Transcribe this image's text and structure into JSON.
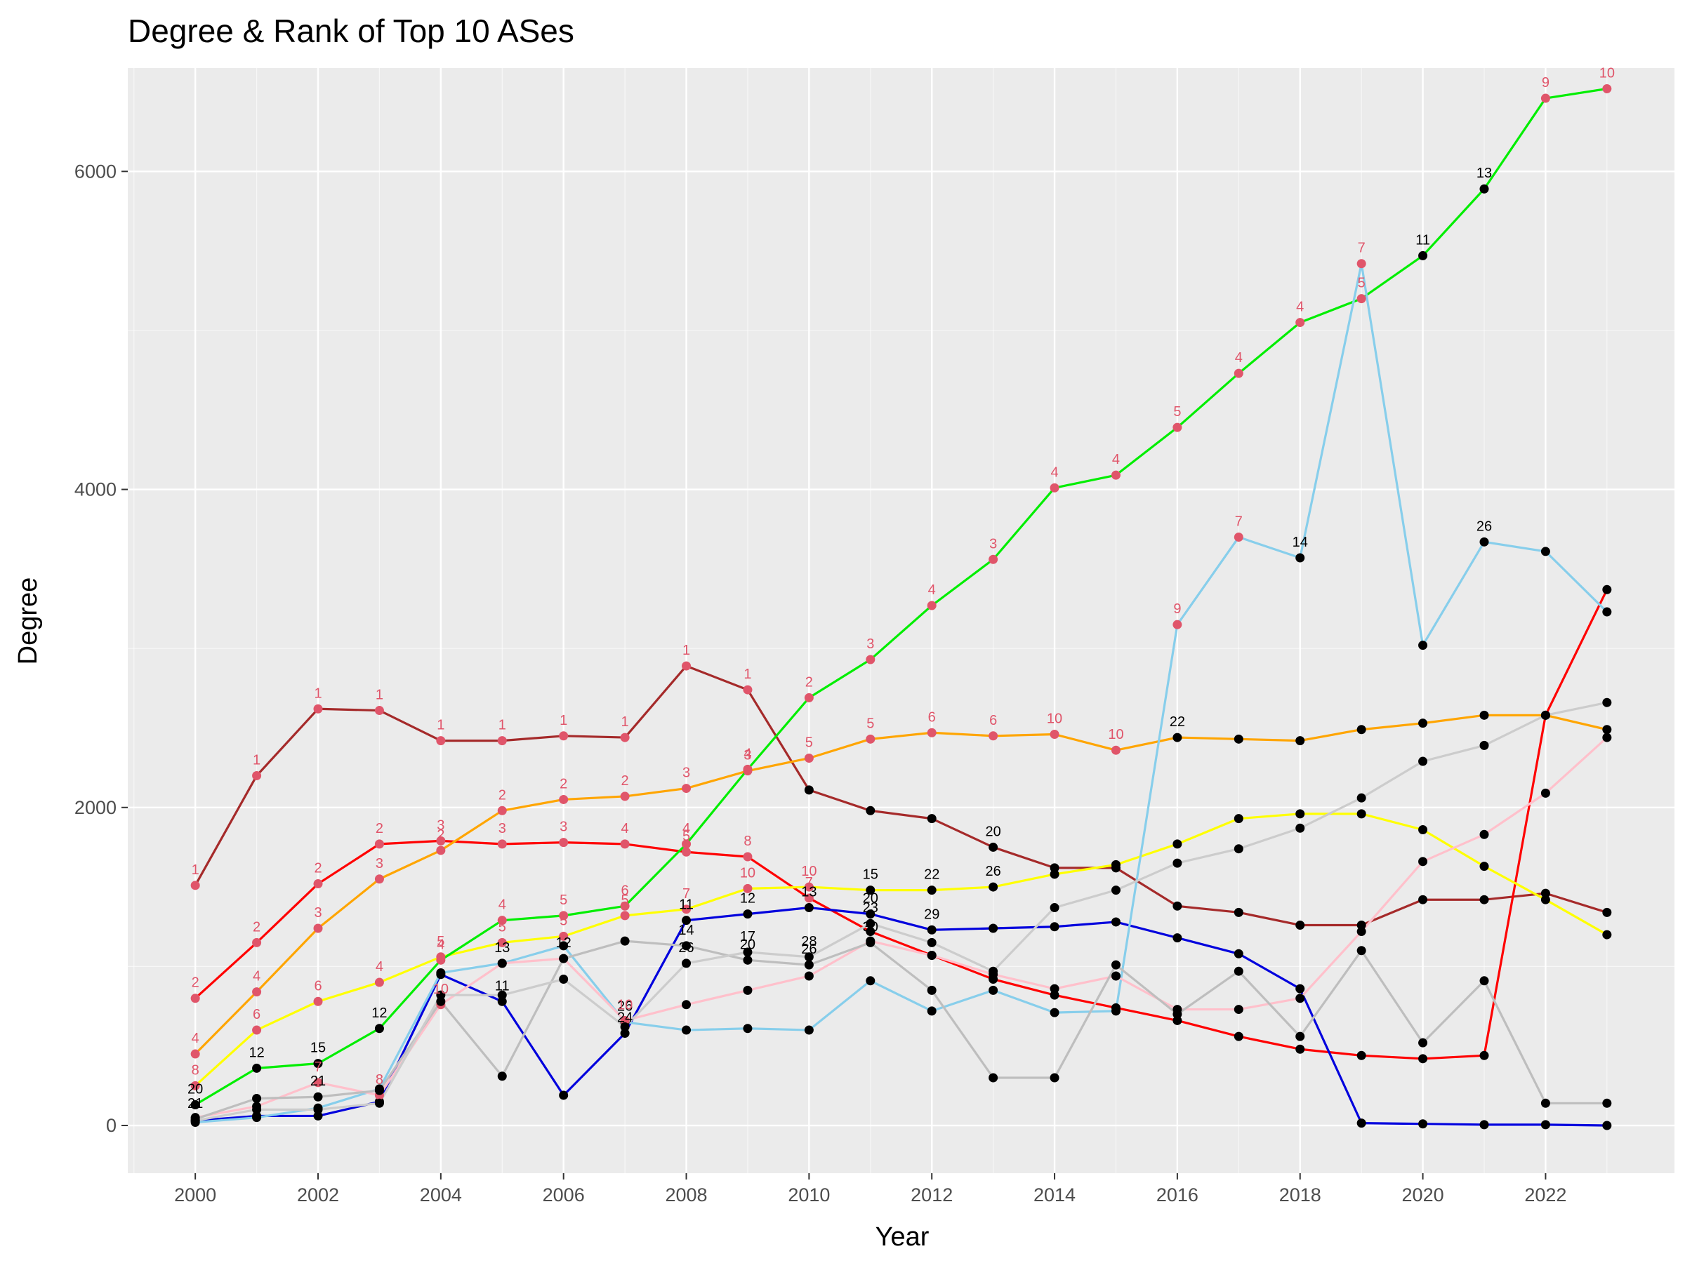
{
  "chart_data": {
    "type": "line",
    "title": "Degree & Rank of Top 10 ASes",
    "xlabel": "Year",
    "ylabel": "Degree",
    "xlim": [
      1998.9,
      2024.1
    ],
    "ylim": [
      -300,
      6650
    ],
    "x_ticks": [
      "2000",
      "2002",
      "2004",
      "2006",
      "2008",
      "2010",
      "2012",
      "2014",
      "2016",
      "2018",
      "2020",
      "2022"
    ],
    "y_ticks": [
      "0",
      "2000",
      "4000",
      "6000"
    ],
    "grid": true,
    "colors": {
      "panel": "#ebebeb",
      "grid_major": "#ffffff",
      "top10_point": "#e0556a",
      "other_point": "#000000"
    },
    "x": [
      2000,
      2001,
      2002,
      2003,
      2004,
      2005,
      2006,
      2007,
      2008,
      2009,
      2010,
      2011,
      2012,
      2013,
      2014,
      2015,
      2016,
      2017,
      2018,
      2019,
      2020,
      2021,
      2022,
      2023
    ],
    "series": [
      {
        "color": "#a52a2a",
        "values": [
          1510,
          2200,
          2620,
          2610,
          2420,
          2420,
          2450,
          2440,
          2890,
          2740,
          2110,
          1980,
          1930,
          1750,
          1620,
          1620,
          1380,
          1340,
          1260,
          1260,
          1420,
          1420,
          1460,
          1340
        ],
        "ranks": [
          "1",
          "1",
          "1",
          "1",
          "1",
          "1",
          "1",
          "1",
          "1",
          "1",
          "",
          "",
          "",
          "20",
          "",
          "",
          "",
          "",
          "",
          "",
          "",
          "",
          "",
          ""
        ]
      },
      {
        "color": "#ff0000",
        "values": [
          800,
          1150,
          1520,
          1770,
          1790,
          1770,
          1780,
          1770,
          1720,
          1690,
          1430,
          1220,
          1070,
          920,
          820,
          740,
          660,
          560,
          480,
          440,
          420,
          440,
          2580,
          3370
        ],
        "ranks": [
          "2",
          "2",
          "2",
          "2",
          "3",
          "3",
          "3",
          "4",
          "5",
          "8",
          "7",
          "",
          "",
          "",
          "",
          "",
          "",
          "",
          "",
          "",
          "",
          "",
          "",
          ""
        ]
      },
      {
        "color": "#ffa500",
        "values": [
          450,
          840,
          1240,
          1550,
          1730,
          1980,
          2050,
          2070,
          2120,
          2230,
          2310,
          2430,
          2470,
          2450,
          2460,
          2360,
          2440,
          2430,
          2420,
          2490,
          2530,
          2580,
          2580,
          2490
        ],
        "ranks": [
          "4",
          "4",
          "3",
          "3",
          "2",
          "2",
          "2",
          "2",
          "3",
          "3",
          "5",
          "5",
          "6",
          "6",
          "10",
          "10",
          "22",
          "",
          "",
          "",
          "",
          "",
          "",
          ""
        ]
      },
      {
        "color": "#ffff00",
        "values": [
          250,
          600,
          780,
          900,
          1060,
          1150,
          1190,
          1320,
          1360,
          1490,
          1500,
          1480,
          1480,
          1500,
          1580,
          1640,
          1770,
          1930,
          1960,
          1960,
          1860,
          1630,
          1420,
          1200
        ],
        "ranks": [
          "8",
          "6",
          "6",
          "4",
          "5",
          "5",
          "5",
          "5",
          "7",
          "10",
          "10",
          "15",
          "22",
          "26",
          "",
          "",
          "",
          "",
          "",
          "",
          "",
          "",
          "",
          ""
        ]
      },
      {
        "color": "#00ee00",
        "values": [
          130,
          360,
          390,
          610,
          1040,
          1290,
          1320,
          1380,
          1770,
          2240,
          2690,
          2930,
          3270,
          3560,
          4010,
          4090,
          4390,
          4730,
          5050,
          5200,
          5470,
          5890,
          6460,
          6520
        ],
        "ranks": [
          "20",
          "12",
          "15",
          "12",
          "4",
          "4",
          "5",
          "6",
          "4",
          "4",
          "2",
          "3",
          "4",
          "3",
          "4",
          "4",
          "5",
          "4",
          "4",
          "5",
          "11",
          "13",
          "9",
          "10"
        ]
      },
      {
        "color": "#0000dd",
        "values": [
          30,
          60,
          60,
          150,
          950,
          780,
          190,
          580,
          1290,
          1330,
          1370,
          1330,
          1230,
          1240,
          1250,
          1280,
          1180,
          1080,
          860,
          15,
          10,
          5,
          5,
          0
        ],
        "ranks": [
          "",
          "",
          "",
          "",
          "",
          "11",
          "",
          "24",
          "11",
          "12",
          "13",
          "20",
          "29",
          "",
          "",
          "",
          "",
          "",
          "",
          "",
          "",
          "",
          "",
          ""
        ]
      },
      {
        "color": "#87ceeb",
        "values": [
          20,
          50,
          110,
          230,
          960,
          1020,
          1130,
          650,
          600,
          610,
          600,
          910,
          720,
          850,
          710,
          720,
          3150,
          3700,
          3570,
          5420,
          3020,
          3670,
          3610,
          3230
        ],
        "ranks": [
          "",
          "",
          "",
          "",
          "",
          "13",
          "",
          "26",
          "",
          "",
          "",
          "",
          "",
          "",
          "",
          "",
          "9",
          "7",
          "14",
          "7",
          "",
          "26",
          "",
          ""
        ]
      },
      {
        "color": "#ffc0cb",
        "values": [
          50,
          120,
          270,
          190,
          760,
          1020,
          1050,
          660,
          760,
          850,
          940,
          1160,
          1070,
          950,
          860,
          940,
          730,
          730,
          800,
          1220,
          1660,
          1830,
          2090,
          2440
        ],
        "ranks": [
          "",
          "",
          "7",
          "8",
          "10",
          "",
          "",
          "10",
          "",
          "",
          "",
          "",
          "",
          "",
          "",
          "",
          "",
          "",
          "",
          "",
          "",
          "",
          "",
          ""
        ]
      },
      {
        "color": "#bebebe",
        "values": [
          40,
          170,
          180,
          220,
          780,
          310,
          1050,
          1160,
          1130,
          1040,
          1010,
          1150,
          850,
          300,
          300,
          1010,
          700,
          970,
          560,
          1100,
          520,
          910,
          140,
          140
        ],
        "ranks": [
          "21",
          "",
          "21",
          "",
          "",
          "",
          "12",
          "",
          "14",
          "20",
          "26",
          "30",
          "",
          "",
          "",
          "",
          "",
          "",
          "",
          "",
          "",
          "",
          "",
          ""
        ]
      },
      {
        "color": "#cccccc",
        "values": [
          30,
          100,
          100,
          140,
          820,
          820,
          920,
          620,
          1020,
          1090,
          1060,
          1270,
          1150,
          970,
          1370,
          1480,
          1650,
          1740,
          1870,
          2060,
          2290,
          2390,
          2580,
          2660
        ],
        "ranks": [
          "",
          "",
          "",
          "",
          "",
          "",
          "",
          "",
          "26",
          "17",
          "28",
          "23",
          "",
          "",
          "",
          "",
          "",
          "",
          "",
          "",
          "",
          "",
          "",
          ""
        ]
      }
    ]
  }
}
